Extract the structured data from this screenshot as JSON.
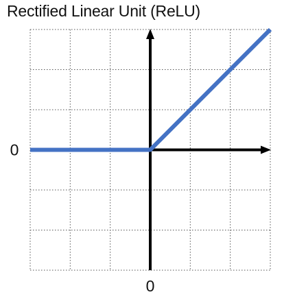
{
  "chart_data": {
    "type": "line",
    "title": "Rectified Linear Unit (ReLU)",
    "xlabel": "",
    "ylabel": "",
    "xlim": [
      -3,
      3
    ],
    "ylim": [
      -3,
      3
    ],
    "grid": true,
    "x_tick_labels": [
      {
        "value": 0,
        "label": "0"
      }
    ],
    "y_tick_labels": [
      {
        "value": 0,
        "label": "0"
      }
    ],
    "series": [
      {
        "color": "#4472C4",
        "x": [
          -3,
          0,
          3
        ],
        "y": [
          0,
          0,
          3
        ]
      }
    ],
    "axis_color": "#000000",
    "grid_color": "#555555"
  }
}
